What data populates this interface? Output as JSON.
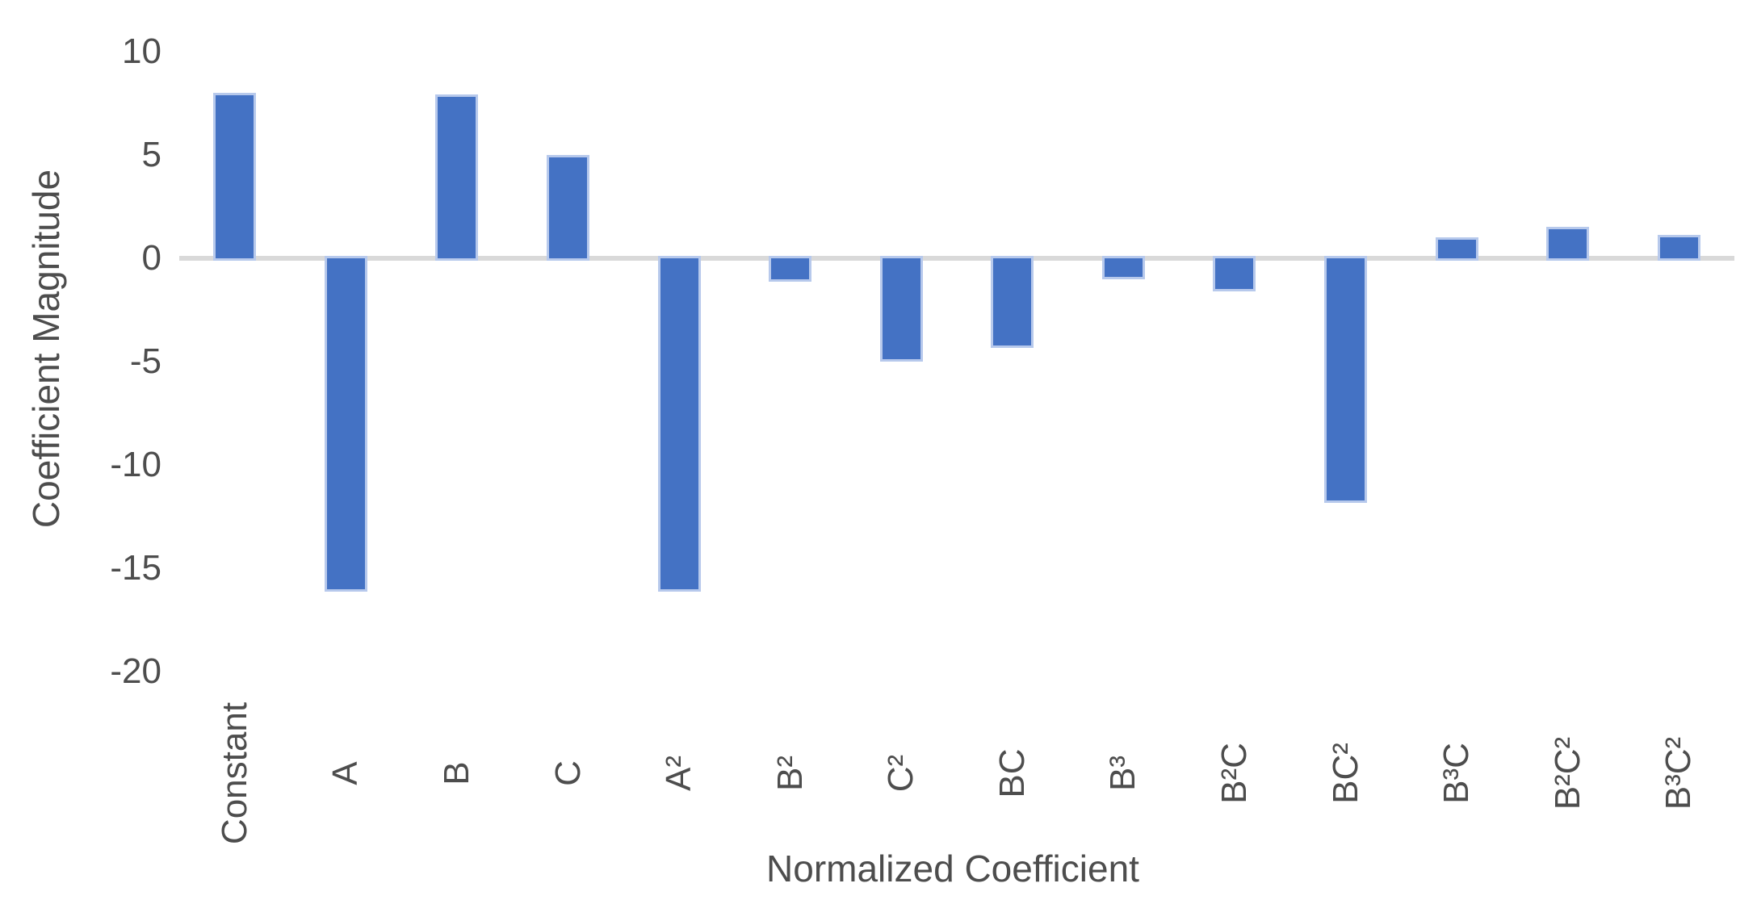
{
  "page": {
    "background": "#ffffff"
  },
  "chart_data": {
    "type": "bar",
    "title": "",
    "xlabel": "Normalized Coefficient",
    "ylabel": "Coefficient Magnitude",
    "categories": [
      "Constant",
      "A",
      "B",
      "C",
      "A²",
      "B²",
      "C²",
      "BC",
      "B³",
      "B²C",
      "BC²",
      "B³C",
      "B²C²",
      "B³C²"
    ],
    "values": [
      7.9,
      -16.0,
      7.8,
      4.9,
      -16.0,
      -1.0,
      -4.9,
      -4.2,
      -0.9,
      -1.5,
      -11.7,
      0.9,
      1.4,
      1.0
    ],
    "y_ticks": [
      10,
      5,
      0,
      -5,
      -10,
      -15,
      -20
    ],
    "ylim": [
      -20,
      10
    ],
    "grid": false,
    "legend": false,
    "bar_color": "#4472C4",
    "bar_edge_color": "#b7c9ec",
    "axis_line_color": "#d9d9d9",
    "text_color": "#4d4d4d"
  }
}
